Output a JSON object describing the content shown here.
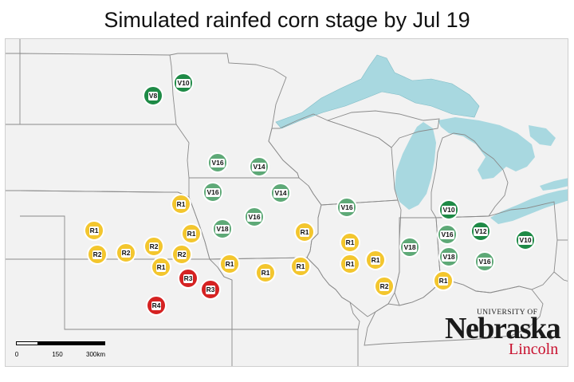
{
  "title": "Simulated rainfed corn stage by Jul 19",
  "colors": {
    "lake": "#a8d8e0",
    "land": "#f2f2f2",
    "border": "#8a8a8a",
    "vegetative_dark": "#1e8a46",
    "vegetative_light": "#5ea977",
    "reproductive_yellow": "#f3c62e",
    "reproductive_red": "#d52222"
  },
  "markers": [
    {
      "label": "V10",
      "color": "vegetative_dark"
    },
    {
      "label": "V8",
      "color": "vegetative_dark"
    },
    {
      "label": "V16",
      "color": "vegetative_light"
    },
    {
      "label": "V14",
      "color": "vegetative_light"
    },
    {
      "label": "V16",
      "color": "vegetative_light"
    },
    {
      "label": "V14",
      "color": "vegetative_light"
    },
    {
      "label": "V16",
      "color": "vegetative_light"
    },
    {
      "label": "V18",
      "color": "vegetative_light"
    },
    {
      "label": "V16",
      "color": "vegetative_light"
    },
    {
      "label": "R1",
      "color": "reproductive_yellow"
    },
    {
      "label": "R1",
      "color": "reproductive_yellow"
    },
    {
      "label": "R1",
      "color": "reproductive_yellow"
    },
    {
      "label": "R2",
      "color": "reproductive_yellow"
    },
    {
      "label": "R2",
      "color": "reproductive_yellow"
    },
    {
      "label": "R2",
      "color": "reproductive_yellow"
    },
    {
      "label": "R2",
      "color": "reproductive_yellow"
    },
    {
      "label": "R1",
      "color": "reproductive_yellow"
    },
    {
      "label": "R3",
      "color": "reproductive_red"
    },
    {
      "label": "R3",
      "color": "reproductive_red"
    },
    {
      "label": "R4",
      "color": "reproductive_red"
    },
    {
      "label": "R1",
      "color": "reproductive_yellow"
    },
    {
      "label": "R1",
      "color": "reproductive_yellow"
    },
    {
      "label": "R1",
      "color": "reproductive_yellow"
    },
    {
      "label": "R1",
      "color": "reproductive_yellow"
    },
    {
      "label": "R1",
      "color": "reproductive_yellow"
    },
    {
      "label": "R1",
      "color": "reproductive_yellow"
    },
    {
      "label": "R1",
      "color": "reproductive_yellow"
    },
    {
      "label": "R1",
      "color": "reproductive_yellow"
    },
    {
      "label": "R2",
      "color": "reproductive_yellow"
    },
    {
      "label": "V16",
      "color": "vegetative_light"
    },
    {
      "label": "V18",
      "color": "vegetative_light"
    },
    {
      "label": "V10",
      "color": "vegetative_dark"
    },
    {
      "label": "V16",
      "color": "vegetative_light"
    },
    {
      "label": "V18",
      "color": "vegetative_light"
    },
    {
      "label": "R1",
      "color": "reproductive_yellow"
    },
    {
      "label": "V12",
      "color": "vegetative_dark"
    },
    {
      "label": "V16",
      "color": "vegetative_light"
    },
    {
      "label": "V10",
      "color": "vegetative_dark"
    }
  ],
  "scale_bar": {
    "labels": [
      "0",
      "150",
      "300km"
    ]
  },
  "logo": {
    "university": "UNIVERSITY OF",
    "name": "Nebraska",
    "registered": "®",
    "campus": "Lincoln"
  }
}
